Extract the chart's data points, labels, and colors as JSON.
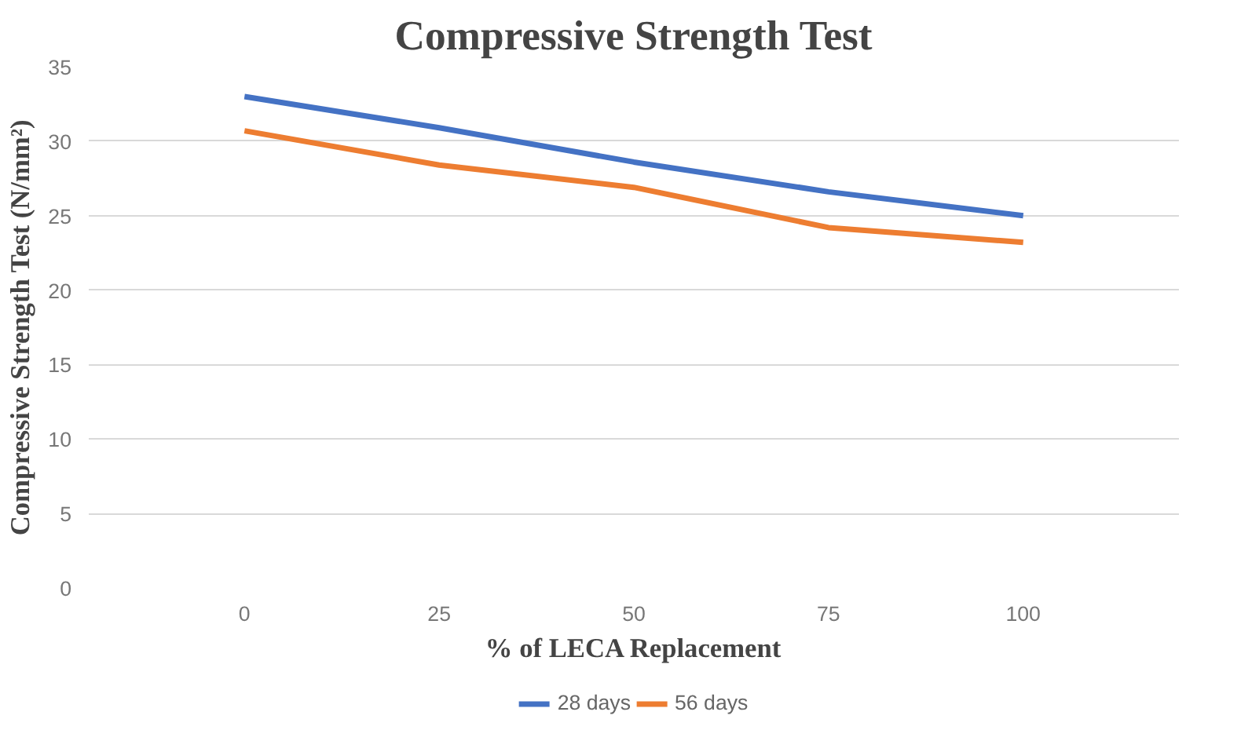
{
  "chart_data": {
    "type": "line",
    "title": "Compressive Strength Test",
    "xlabel": "% of LECA Replacement",
    "ylabel": "Compressive Strength Test (N/mm²)",
    "categories": [
      "0",
      "25",
      "50",
      "75",
      "100"
    ],
    "series": [
      {
        "name": "28 days",
        "color": "#4472c4",
        "values": [
          33,
          30.9,
          28.6,
          26.6,
          25
        ]
      },
      {
        "name": "56 days",
        "color": "#ed7d31",
        "values": [
          30.7,
          28.4,
          26.9,
          24.2,
          23.2
        ]
      }
    ],
    "ylim": [
      0,
      35
    ],
    "yticks": [
      0,
      5,
      10,
      15,
      20,
      25,
      30,
      35
    ],
    "grid": "y",
    "legend": "bottom",
    "marker": "none",
    "line_style": "solid"
  }
}
